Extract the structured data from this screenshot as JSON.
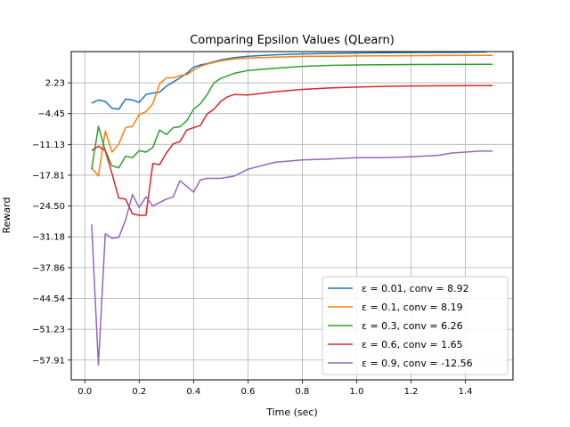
{
  "chart_data": {
    "type": "line",
    "title": "Comparing Epsilon Values (QLearn)",
    "xlabel": "Time (sec)",
    "ylabel": "Reward",
    "xlim": [
      -0.05,
      1.575
    ],
    "ylim": [
      -62.2,
      9.0
    ],
    "xticks": [
      0.0,
      0.2,
      0.4,
      0.6,
      0.8,
      1.0,
      1.2,
      1.4
    ],
    "xtick_labels": [
      "0.0",
      "0.2",
      "0.4",
      "0.6",
      "0.8",
      "1.0",
      "1.2",
      "1.4"
    ],
    "yticks": [
      2.23,
      -4.45,
      -11.13,
      -17.81,
      -24.5,
      -31.18,
      -37.86,
      -44.54,
      -51.23,
      -57.91
    ],
    "ytick_labels": [
      "2.23",
      "−4.45",
      "−11.13",
      "−17.81",
      "−24.50",
      "−31.18",
      "−37.86",
      "−44.54",
      "−51.23",
      "−57.91"
    ],
    "grid": true,
    "legend_position": "lower-right",
    "series": [
      {
        "name": "ε = 0.01, conv = 8.92",
        "color": "#1f77b4",
        "x": [
          0.025,
          0.05,
          0.075,
          0.1,
          0.125,
          0.15,
          0.175,
          0.2,
          0.225,
          0.25,
          0.275,
          0.3,
          0.325,
          0.35,
          0.375,
          0.4,
          0.425,
          0.45,
          0.5,
          0.55,
          0.6,
          0.7,
          0.8,
          0.9,
          1.0,
          1.1,
          1.2,
          1.3,
          1.4,
          1.48
        ],
        "y": [
          -2.2,
          -1.5,
          -1.8,
          -3.3,
          -3.5,
          -1.3,
          -1.5,
          -2.0,
          -0.3,
          0.0,
          0.2,
          1.5,
          2.4,
          3.3,
          4.3,
          5.6,
          6.1,
          6.4,
          7.2,
          7.7,
          8.0,
          8.3,
          8.5,
          8.6,
          8.7,
          8.75,
          8.8,
          8.82,
          8.85,
          8.92
        ]
      },
      {
        "name": "ε = 0.1, conv = 8.19",
        "color": "#ff7f0e",
        "x": [
          0.025,
          0.05,
          0.075,
          0.1,
          0.125,
          0.15,
          0.175,
          0.2,
          0.225,
          0.25,
          0.275,
          0.3,
          0.325,
          0.35,
          0.375,
          0.4,
          0.425,
          0.45,
          0.5,
          0.55,
          0.6,
          0.7,
          0.8,
          0.9,
          1.0,
          1.1,
          1.2,
          1.3,
          1.4,
          1.5
        ],
        "y": [
          -16.2,
          -18.0,
          -8.2,
          -12.8,
          -11.0,
          -7.5,
          -7.2,
          -4.7,
          -4.0,
          -2.3,
          2.0,
          3.3,
          3.3,
          3.8,
          4.0,
          5.0,
          5.8,
          6.3,
          7.0,
          7.4,
          7.6,
          7.8,
          7.95,
          8.0,
          8.05,
          8.1,
          8.12,
          8.15,
          8.17,
          8.19
        ]
      },
      {
        "name": "ε = 0.3, conv = 6.26",
        "color": "#2ca02c",
        "x": [
          0.025,
          0.05,
          0.075,
          0.1,
          0.125,
          0.15,
          0.175,
          0.2,
          0.225,
          0.25,
          0.275,
          0.3,
          0.325,
          0.35,
          0.375,
          0.4,
          0.425,
          0.45,
          0.475,
          0.5,
          0.55,
          0.6,
          0.7,
          0.8,
          0.9,
          1.0,
          1.1,
          1.2,
          1.3,
          1.5
        ],
        "y": [
          -16.5,
          -7.2,
          -12.5,
          -15.8,
          -16.2,
          -13.7,
          -14.0,
          -12.5,
          -12.8,
          -11.8,
          -8.0,
          -9.0,
          -7.5,
          -7.3,
          -6.0,
          -3.5,
          -2.3,
          -0.3,
          2.2,
          3.2,
          4.3,
          4.9,
          5.4,
          5.8,
          6.0,
          6.1,
          6.15,
          6.2,
          6.22,
          6.26
        ]
      },
      {
        "name": "ε = 0.6, conv = 1.65",
        "color": "#d62728",
        "x": [
          0.025,
          0.05,
          0.075,
          0.1,
          0.125,
          0.15,
          0.175,
          0.2,
          0.225,
          0.25,
          0.275,
          0.3,
          0.325,
          0.35,
          0.375,
          0.4,
          0.425,
          0.45,
          0.475,
          0.5,
          0.525,
          0.55,
          0.6,
          0.7,
          0.8,
          0.9,
          1.0,
          1.1,
          1.2,
          1.5
        ],
        "y": [
          -12.5,
          -11.5,
          -12.5,
          -17.5,
          -22.8,
          -23.0,
          -26.2,
          -26.5,
          -26.5,
          -15.3,
          -15.5,
          -13.0,
          -11.0,
          -10.5,
          -8.0,
          -7.5,
          -7.0,
          -4.5,
          -3.5,
          -1.8,
          -0.8,
          -0.3,
          -0.4,
          0.3,
          0.8,
          1.1,
          1.3,
          1.45,
          1.55,
          1.65
        ]
      },
      {
        "name": "ε = 0.9, conv = -12.56",
        "color": "#9467bd",
        "x": [
          0.025,
          0.05,
          0.075,
          0.1,
          0.125,
          0.15,
          0.175,
          0.2,
          0.225,
          0.25,
          0.3,
          0.325,
          0.35,
          0.4,
          0.425,
          0.45,
          0.5,
          0.55,
          0.6,
          0.7,
          0.8,
          0.9,
          1.0,
          1.1,
          1.2,
          1.3,
          1.35,
          1.4,
          1.45,
          1.5
        ],
        "y": [
          -28.5,
          -59.0,
          -30.5,
          -31.5,
          -31.3,
          -27.5,
          -22.0,
          -24.8,
          -22.5,
          -24.5,
          -23.0,
          -22.5,
          -19.0,
          -21.5,
          -18.8,
          -18.5,
          -18.5,
          -18.0,
          -16.5,
          -15.0,
          -14.5,
          -14.3,
          -14.0,
          -14.0,
          -13.8,
          -13.5,
          -13.0,
          -12.8,
          -12.6,
          -12.56
        ]
      }
    ]
  }
}
